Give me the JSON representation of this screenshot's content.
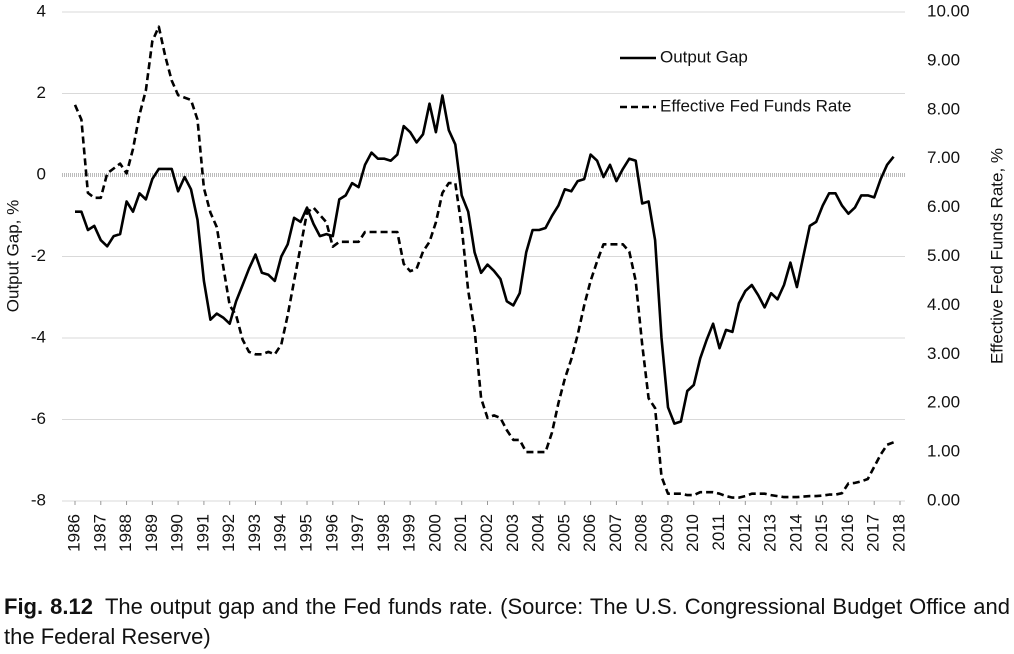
{
  "chart_data": {
    "type": "line",
    "x_label": "Output Gap, %",
    "y_label": "Output Gap, %",
    "y2_label": "Effective Fed Funds Rate, %",
    "x": [
      1986,
      1986.25,
      1986.5,
      1986.75,
      1987,
      1987.25,
      1987.5,
      1987.75,
      1988,
      1988.25,
      1988.5,
      1988.75,
      1989,
      1989.25,
      1989.5,
      1989.75,
      1990,
      1990.25,
      1990.5,
      1990.75,
      1991,
      1991.25,
      1991.5,
      1991.75,
      1992,
      1992.25,
      1992.5,
      1992.75,
      1993,
      1993.25,
      1993.5,
      1993.75,
      1994,
      1994.25,
      1994.5,
      1994.75,
      1995,
      1995.25,
      1995.5,
      1995.75,
      1996,
      1996.25,
      1996.5,
      1996.75,
      1997,
      1997.25,
      1997.5,
      1997.75,
      1998,
      1998.25,
      1998.5,
      1998.75,
      1999,
      1999.25,
      1999.5,
      1999.75,
      2000,
      2000.25,
      2000.5,
      2000.75,
      2001,
      2001.25,
      2001.5,
      2001.75,
      2002,
      2002.25,
      2002.5,
      2002.75,
      2003,
      2003.25,
      2003.5,
      2003.75,
      2004,
      2004.25,
      2004.5,
      2004.75,
      2005,
      2005.25,
      2005.5,
      2005.75,
      2006,
      2006.25,
      2006.5,
      2006.75,
      2007,
      2007.25,
      2007.5,
      2007.75,
      2008,
      2008.25,
      2008.5,
      2008.75,
      2009,
      2009.25,
      2009.5,
      2009.75,
      2010,
      2010.25,
      2010.5,
      2010.75,
      2011,
      2011.25,
      2011.5,
      2011.75,
      2012,
      2012.25,
      2012.5,
      2012.75,
      2013,
      2013.25,
      2013.5,
      2013.75,
      2014,
      2014.25,
      2014.5,
      2014.75,
      2015,
      2015.25,
      2015.5,
      2015.75,
      2016,
      2016.25,
      2016.5,
      2016.75,
      2017,
      2017.25,
      2017.5,
      2017.75
    ],
    "series": [
      {
        "name": "Output Gap",
        "color": "#000000",
        "dash": "solid",
        "axis": "y",
        "values": [
          -0.9,
          -0.9,
          -1.35,
          -1.25,
          -1.6,
          -1.75,
          -1.5,
          -1.45,
          -0.65,
          -0.9,
          -0.45,
          -0.6,
          -0.1,
          0.15,
          0.15,
          0.15,
          -0.4,
          -0.05,
          -0.35,
          -1.1,
          -2.6,
          -3.55,
          -3.4,
          -3.5,
          -3.65,
          -3.1,
          -2.7,
          -2.3,
          -1.95,
          -2.4,
          -2.45,
          -2.6,
          -2.0,
          -1.7,
          -1.05,
          -1.15,
          -0.8,
          -1.2,
          -1.5,
          -1.45,
          -1.5,
          -0.6,
          -0.5,
          -0.2,
          -0.3,
          0.25,
          0.55,
          0.4,
          0.4,
          0.35,
          0.5,
          1.2,
          1.05,
          0.8,
          1.0,
          1.75,
          1.05,
          1.95,
          1.1,
          0.75,
          -0.5,
          -0.9,
          -1.9,
          -2.4,
          -2.2,
          -2.35,
          -2.55,
          -3.1,
          -3.2,
          -2.9,
          -1.9,
          -1.35,
          -1.35,
          -1.3,
          -1.0,
          -0.75,
          -0.35,
          -0.4,
          -0.15,
          -0.1,
          0.5,
          0.35,
          -0.05,
          0.25,
          -0.15,
          0.15,
          0.4,
          0.35,
          -0.7,
          -0.65,
          -1.6,
          -4.0,
          -5.7,
          -6.1,
          -6.05,
          -5.3,
          -5.15,
          -4.5,
          -4.05,
          -3.65,
          -4.25,
          -3.8,
          -3.85,
          -3.15,
          -2.85,
          -2.7,
          -2.95,
          -3.25,
          -2.9,
          -3.05,
          -2.7,
          -2.15,
          -2.75,
          -2.0,
          -1.25,
          -1.15,
          -0.75,
          -0.45,
          -0.45,
          -0.75,
          -0.95,
          -0.8,
          -0.5,
          -0.5,
          -0.55,
          -0.1,
          0.25,
          0.45
        ]
      },
      {
        "name": "Effective Fed Funds Rate",
        "color": "#000000",
        "dash": "dashed",
        "axis": "y2",
        "values": [
          8.1,
          7.8,
          6.3,
          6.2,
          6.2,
          6.7,
          6.8,
          6.9,
          6.7,
          7.2,
          7.9,
          8.4,
          9.4,
          9.7,
          9.1,
          8.6,
          8.3,
          8.25,
          8.2,
          7.8,
          6.4,
          5.9,
          5.6,
          4.8,
          4.0,
          3.8,
          3.3,
          3.05,
          3.0,
          3.0,
          3.05,
          3.0,
          3.2,
          3.8,
          4.5,
          5.2,
          5.9,
          6.0,
          5.85,
          5.7,
          5.2,
          5.3,
          5.3,
          5.3,
          5.3,
          5.5,
          5.5,
          5.5,
          5.5,
          5.5,
          5.5,
          4.85,
          4.7,
          4.75,
          5.1,
          5.3,
          5.7,
          6.3,
          6.5,
          6.5,
          5.6,
          4.3,
          3.5,
          2.1,
          1.7,
          1.75,
          1.7,
          1.45,
          1.25,
          1.25,
          1.0,
          1.0,
          1.0,
          1.0,
          1.4,
          2.0,
          2.5,
          2.9,
          3.4,
          4.0,
          4.5,
          4.9,
          5.25,
          5.25,
          5.25,
          5.25,
          5.1,
          4.5,
          3.2,
          2.1,
          1.9,
          0.5,
          0.15,
          0.15,
          0.15,
          0.12,
          0.12,
          0.18,
          0.18,
          0.18,
          0.15,
          0.1,
          0.07,
          0.07,
          0.1,
          0.15,
          0.15,
          0.15,
          0.12,
          0.1,
          0.08,
          0.08,
          0.08,
          0.09,
          0.1,
          0.1,
          0.11,
          0.13,
          0.13,
          0.16,
          0.36,
          0.37,
          0.4,
          0.45,
          0.7,
          0.95,
          1.15,
          1.2
        ]
      }
    ],
    "xlim": [
      1986,
      2018
    ],
    "xticks": [
      1986,
      1987,
      1988,
      1989,
      1990,
      1991,
      1992,
      1993,
      1994,
      1995,
      1996,
      1997,
      1998,
      1999,
      2000,
      2001,
      2002,
      2003,
      2004,
      2005,
      2006,
      2007,
      2008,
      2009,
      2010,
      2011,
      2012,
      2013,
      2014,
      2015,
      2016,
      2017,
      2018
    ],
    "ylim": [
      -8,
      4
    ],
    "yticks": [
      -8,
      -6,
      -4,
      -2,
      0,
      2,
      4
    ],
    "y2lim": [
      0,
      10
    ],
    "y2ticks": [
      {
        "value": 0,
        "label": "0.00"
      },
      {
        "value": 1,
        "label": "1.00"
      },
      {
        "value": 2,
        "label": "2.00"
      },
      {
        "value": 3,
        "label": "3.00"
      },
      {
        "value": 4,
        "label": "4.00"
      },
      {
        "value": 5,
        "label": "5.00"
      },
      {
        "value": 6,
        "label": "6.00"
      },
      {
        "value": 7,
        "label": "7.00"
      },
      {
        "value": 8,
        "label": "8.00"
      },
      {
        "value": 9,
        "label": "9.00"
      },
      {
        "value": 10,
        "label": "10.00"
      }
    ],
    "grid": true,
    "legend": "upper right"
  },
  "caption": {
    "label": "Fig. 8.12",
    "text": "The output gap and the Fed funds rate. (Source: The U.S. Congressional Budget Office and the Federal Reserve)"
  }
}
